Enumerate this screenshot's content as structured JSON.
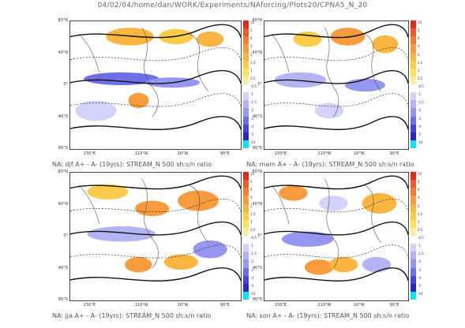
{
  "header": {
    "title": "04/02/04/home/dan/WORK/Experiments/NAforcing/Plots20/CPNA5_N_20"
  },
  "lat_labels": [
    "80°N",
    "40°N",
    "0°",
    "40°S",
    "80°S"
  ],
  "lon_labels": [
    "150°E",
    "110°W",
    "10°W",
    "90°E"
  ],
  "colorbar": {
    "labels": [
      "10",
      "5",
      "4",
      "3",
      "2",
      "1.5",
      "1",
      "0.5",
      "-0.5",
      "-1",
      "-1.5",
      "-2",
      "-3",
      "-4",
      "-5",
      "-10"
    ],
    "colors": [
      "#e8281e",
      "#f05a28",
      "#f57d32",
      "#f89b3c",
      "#fbb642",
      "#fccc49",
      "#fde05a",
      "#feeca0",
      "#ffffff",
      "#d2d2fa",
      "#b4b4f5",
      "#9696f0",
      "#6e6ee6",
      "#4646dc",
      "#2828c8",
      "#00e6f0"
    ]
  },
  "panels": [
    {
      "caption": "NA: djf A+ - A- (19yrs): STREAM_N 500 sh:s/n ratio"
    },
    {
      "caption": "NA: mam A+ - A- (19yrs): STREAM_N 500 sh:s/n ratio"
    },
    {
      "caption": "NA: jja A+ - A- (19yrs): STREAM_N 500 sh:s/n ratio"
    },
    {
      "caption": "NA: son A+ - A- (19yrs): STREAM_N 500 sh:s/n ratio"
    }
  ]
}
